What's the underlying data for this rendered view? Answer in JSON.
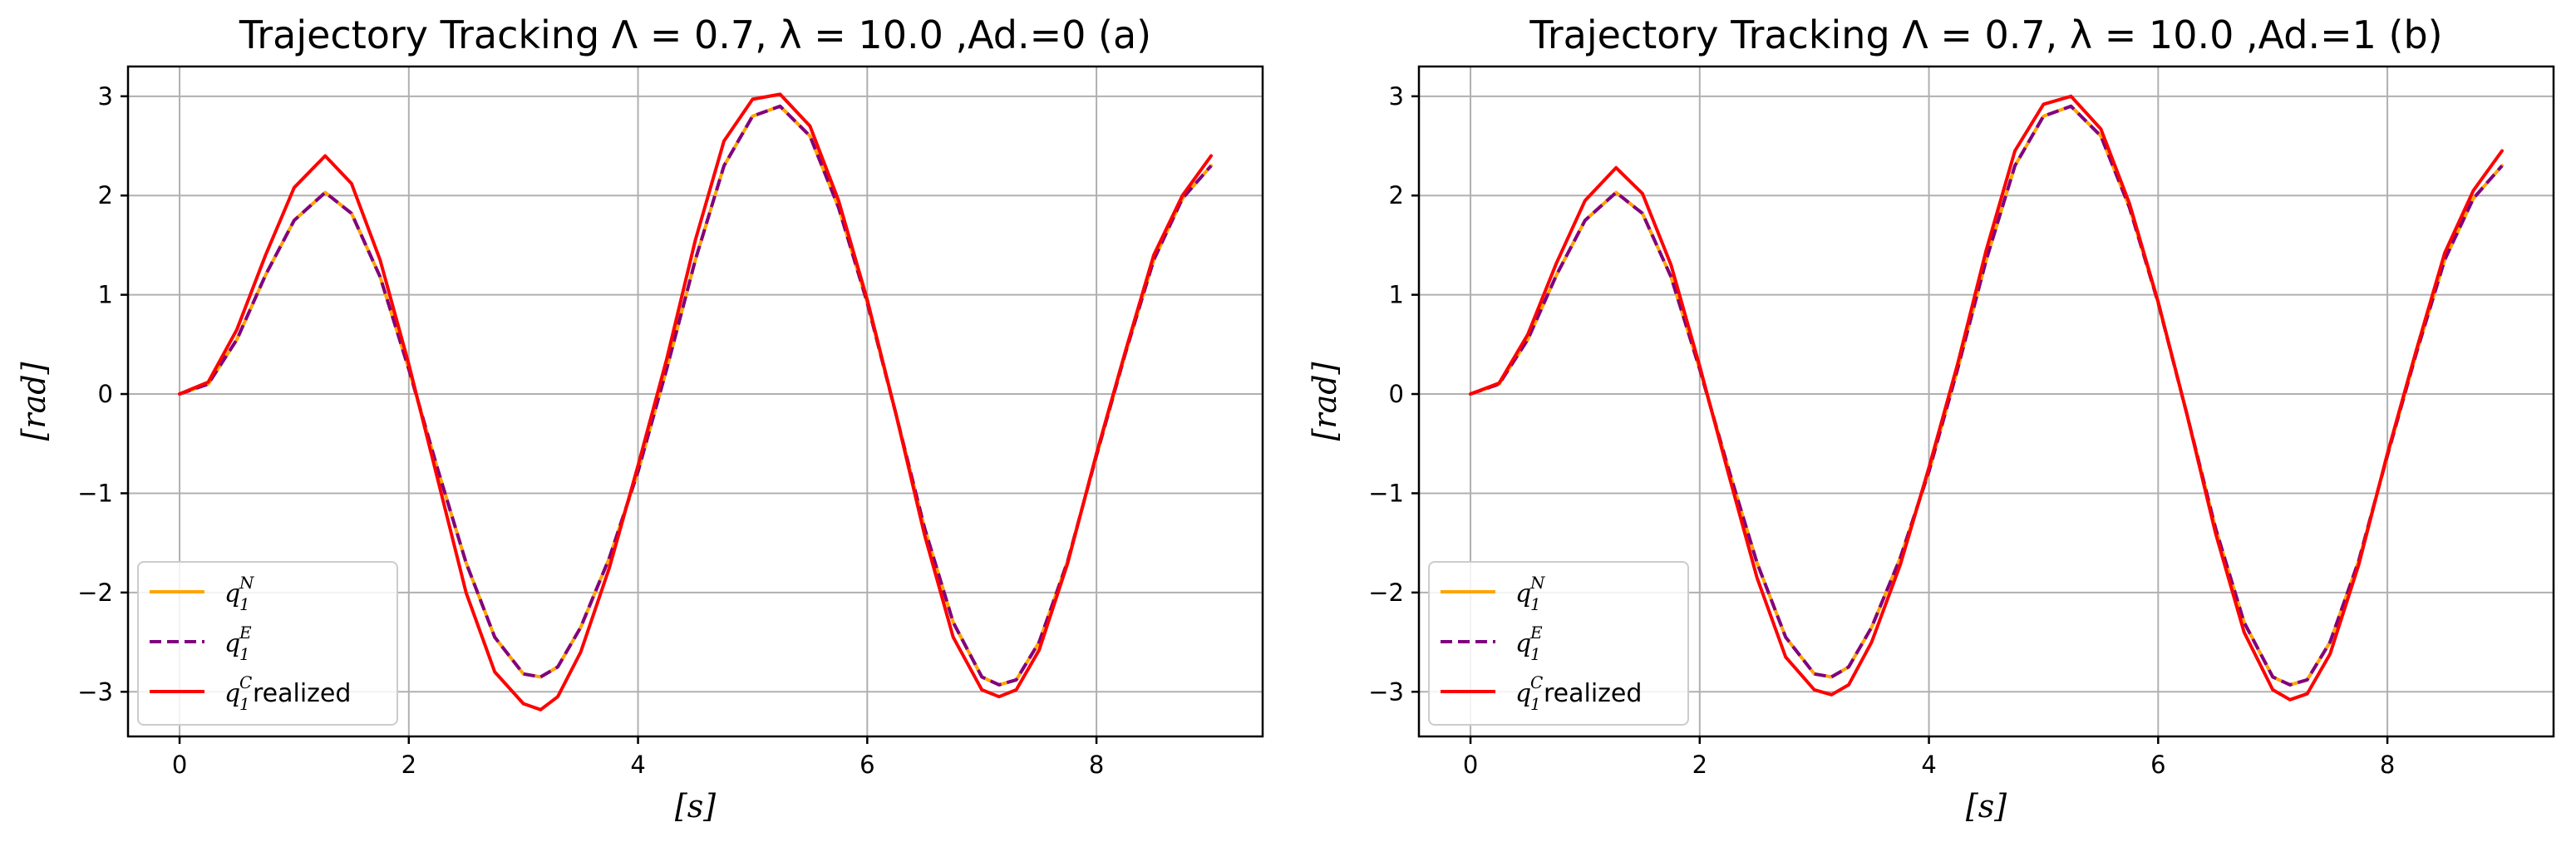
{
  "chart_data": [
    {
      "type": "line",
      "id": "a",
      "title": "Trajectory Tracking Λ = 0.7, λ = 10.0 ,Ad.=0 (a)",
      "xlabel": "[s]",
      "ylabel": "[rad]",
      "xlim": [
        -0.45,
        9.45
      ],
      "ylim": [
        -3.45,
        3.3
      ],
      "xticks": [
        0,
        2,
        4,
        6,
        8
      ],
      "xtick_labels": [
        "0",
        "2",
        "4",
        "6",
        "8"
      ],
      "yticks": [
        3,
        2,
        1,
        0,
        -1,
        -2,
        -3
      ],
      "ytick_labels": [
        "3",
        "2",
        "1",
        "0",
        "−1",
        "−2",
        "−3"
      ],
      "grid": true,
      "legend": {
        "placement": "lower-left",
        "entries": [
          {
            "base": "q",
            "sub": "1",
            "sup": "N",
            "suffix": ""
          },
          {
            "base": "q",
            "sub": "1",
            "sup": "E",
            "suffix": ""
          },
          {
            "base": "q",
            "sub": "1",
            "sup": "C",
            "suffix": " realized"
          }
        ]
      },
      "series": [
        {
          "name": "q1^N",
          "color": "#ffa500",
          "style": "solid",
          "x": [
            0,
            0.25,
            0.5,
            0.75,
            1.0,
            1.27,
            1.5,
            1.75,
            2.0,
            2.25,
            2.5,
            2.75,
            3.0,
            3.15,
            3.3,
            3.5,
            3.75,
            4.0,
            4.25,
            4.5,
            4.75,
            5.0,
            5.24,
            5.5,
            5.75,
            6.0,
            6.25,
            6.5,
            6.75,
            7.0,
            7.15,
            7.3,
            7.5,
            7.75,
            8.0,
            8.25,
            8.5,
            8.75,
            9.0
          ],
          "y": [
            0,
            0.1,
            0.55,
            1.2,
            1.75,
            2.03,
            1.82,
            1.18,
            0.25,
            -0.75,
            -1.7,
            -2.45,
            -2.82,
            -2.85,
            -2.75,
            -2.35,
            -1.65,
            -0.78,
            0.25,
            1.35,
            2.3,
            2.8,
            2.9,
            2.6,
            1.88,
            0.92,
            -0.2,
            -1.35,
            -2.3,
            -2.85,
            -2.93,
            -2.88,
            -2.5,
            -1.68,
            -0.62,
            0.4,
            1.35,
            1.97,
            2.3
          ]
        },
        {
          "name": "q1^E",
          "color": "#800080",
          "style": "dashed",
          "x": [
            0,
            0.25,
            0.5,
            0.75,
            1.0,
            1.27,
            1.5,
            1.75,
            2.0,
            2.25,
            2.5,
            2.75,
            3.0,
            3.15,
            3.3,
            3.5,
            3.75,
            4.0,
            4.25,
            4.5,
            4.75,
            5.0,
            5.24,
            5.5,
            5.75,
            6.0,
            6.25,
            6.5,
            6.75,
            7.0,
            7.15,
            7.3,
            7.5,
            7.75,
            8.0,
            8.25,
            8.5,
            8.75,
            9.0
          ],
          "y": [
            0,
            0.1,
            0.55,
            1.2,
            1.75,
            2.03,
            1.82,
            1.18,
            0.25,
            -0.75,
            -1.7,
            -2.45,
            -2.82,
            -2.85,
            -2.75,
            -2.35,
            -1.65,
            -0.78,
            0.25,
            1.35,
            2.3,
            2.8,
            2.9,
            2.6,
            1.88,
            0.92,
            -0.2,
            -1.35,
            -2.3,
            -2.85,
            -2.93,
            -2.88,
            -2.5,
            -1.68,
            -0.62,
            0.4,
            1.35,
            1.97,
            2.3
          ]
        },
        {
          "name": "q1^C realized",
          "color": "#ff0000",
          "style": "solid",
          "x": [
            0,
            0.25,
            0.5,
            0.75,
            1.0,
            1.27,
            1.5,
            1.75,
            2.0,
            2.25,
            2.5,
            2.75,
            3.0,
            3.15,
            3.3,
            3.5,
            3.75,
            4.0,
            4.25,
            4.5,
            4.75,
            5.0,
            5.24,
            5.5,
            5.75,
            6.0,
            6.25,
            6.5,
            6.75,
            7.0,
            7.15,
            7.3,
            7.5,
            7.75,
            8.0,
            8.25,
            8.5,
            8.75,
            9.0
          ],
          "y": [
            0,
            0.12,
            0.65,
            1.4,
            2.08,
            2.4,
            2.12,
            1.35,
            0.3,
            -0.85,
            -2.0,
            -2.8,
            -3.12,
            -3.18,
            -3.05,
            -2.6,
            -1.75,
            -0.72,
            0.35,
            1.55,
            2.55,
            2.97,
            3.02,
            2.7,
            1.95,
            0.95,
            -0.2,
            -1.42,
            -2.45,
            -2.98,
            -3.05,
            -2.98,
            -2.58,
            -1.7,
            -0.6,
            0.42,
            1.4,
            2.0,
            2.4
          ]
        }
      ]
    },
    {
      "type": "line",
      "id": "b",
      "title": "Trajectory Tracking Λ = 0.7, λ = 10.0 ,Ad.=1 (b)",
      "xlabel": "[s]",
      "ylabel": "[rad]",
      "xlim": [
        -0.45,
        9.45
      ],
      "ylim": [
        -3.45,
        3.3
      ],
      "xticks": [
        0,
        2,
        4,
        6,
        8
      ],
      "xtick_labels": [
        "0",
        "2",
        "4",
        "6",
        "8"
      ],
      "yticks": [
        3,
        2,
        1,
        0,
        -1,
        -2,
        -3
      ],
      "ytick_labels": [
        "3",
        "2",
        "1",
        "0",
        "−1",
        "−2",
        "−3"
      ],
      "grid": true,
      "legend": {
        "placement": "lower-left",
        "entries": [
          {
            "base": "q",
            "sub": "1",
            "sup": "N",
            "suffix": ""
          },
          {
            "base": "q",
            "sub": "1",
            "sup": "E",
            "suffix": ""
          },
          {
            "base": "q",
            "sub": "1",
            "sup": "C",
            "suffix": " realized"
          }
        ]
      },
      "series": [
        {
          "name": "q1^N",
          "color": "#ffa500",
          "style": "solid",
          "x": [
            0,
            0.25,
            0.5,
            0.75,
            1.0,
            1.27,
            1.5,
            1.75,
            2.0,
            2.25,
            2.5,
            2.75,
            3.0,
            3.15,
            3.3,
            3.5,
            3.75,
            4.0,
            4.25,
            4.5,
            4.75,
            5.0,
            5.24,
            5.5,
            5.75,
            6.0,
            6.25,
            6.5,
            6.75,
            7.0,
            7.15,
            7.3,
            7.5,
            7.75,
            8.0,
            8.25,
            8.5,
            8.75,
            9.0
          ],
          "y": [
            0,
            0.1,
            0.55,
            1.2,
            1.75,
            2.03,
            1.82,
            1.18,
            0.25,
            -0.75,
            -1.7,
            -2.45,
            -2.82,
            -2.85,
            -2.75,
            -2.35,
            -1.65,
            -0.78,
            0.25,
            1.35,
            2.3,
            2.8,
            2.9,
            2.6,
            1.88,
            0.92,
            -0.2,
            -1.35,
            -2.3,
            -2.85,
            -2.93,
            -2.88,
            -2.5,
            -1.68,
            -0.62,
            0.4,
            1.35,
            1.97,
            2.3
          ]
        },
        {
          "name": "q1^E",
          "color": "#800080",
          "style": "dashed",
          "x": [
            0,
            0.25,
            0.5,
            0.75,
            1.0,
            1.27,
            1.5,
            1.75,
            2.0,
            2.25,
            2.5,
            2.75,
            3.0,
            3.15,
            3.3,
            3.5,
            3.75,
            4.0,
            4.25,
            4.5,
            4.75,
            5.0,
            5.24,
            5.5,
            5.75,
            6.0,
            6.25,
            6.5,
            6.75,
            7.0,
            7.15,
            7.3,
            7.5,
            7.75,
            8.0,
            8.25,
            8.5,
            8.75,
            9.0
          ],
          "y": [
            0,
            0.1,
            0.55,
            1.2,
            1.75,
            2.03,
            1.82,
            1.18,
            0.25,
            -0.75,
            -1.7,
            -2.45,
            -2.82,
            -2.85,
            -2.75,
            -2.35,
            -1.65,
            -0.78,
            0.25,
            1.35,
            2.3,
            2.8,
            2.9,
            2.6,
            1.88,
            0.92,
            -0.2,
            -1.35,
            -2.3,
            -2.85,
            -2.93,
            -2.88,
            -2.5,
            -1.68,
            -0.62,
            0.4,
            1.35,
            1.97,
            2.3
          ]
        },
        {
          "name": "q1^C realized",
          "color": "#ff0000",
          "style": "solid",
          "x": [
            0,
            0.25,
            0.5,
            0.75,
            1.0,
            1.27,
            1.5,
            1.75,
            2.0,
            2.25,
            2.5,
            2.75,
            3.0,
            3.15,
            3.3,
            3.5,
            3.75,
            4.0,
            4.25,
            4.5,
            4.75,
            5.0,
            5.24,
            5.5,
            5.75,
            6.0,
            6.25,
            6.5,
            6.75,
            7.0,
            7.15,
            7.3,
            7.5,
            7.75,
            8.0,
            8.25,
            8.5,
            8.75,
            9.0
          ],
          "y": [
            0,
            0.11,
            0.6,
            1.32,
            1.95,
            2.28,
            2.02,
            1.3,
            0.28,
            -0.8,
            -1.85,
            -2.65,
            -2.98,
            -3.03,
            -2.93,
            -2.5,
            -1.72,
            -0.74,
            0.3,
            1.45,
            2.45,
            2.92,
            3.0,
            2.67,
            1.92,
            0.93,
            -0.2,
            -1.4,
            -2.4,
            -2.98,
            -3.08,
            -3.02,
            -2.62,
            -1.72,
            -0.6,
            0.43,
            1.42,
            2.05,
            2.45
          ]
        }
      ]
    }
  ]
}
